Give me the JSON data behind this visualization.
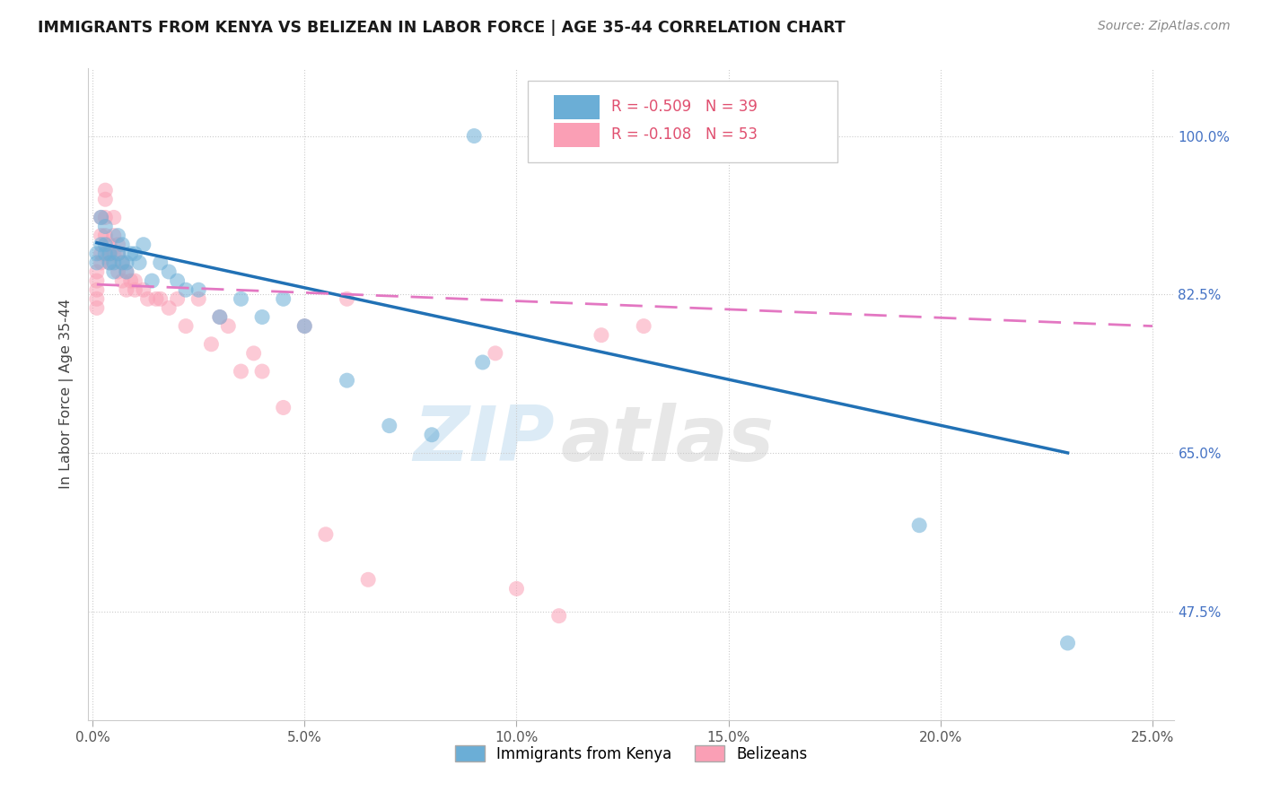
{
  "title": "IMMIGRANTS FROM KENYA VS BELIZEAN IN LABOR FORCE | AGE 35-44 CORRELATION CHART",
  "source": "Source: ZipAtlas.com",
  "ylabel": "In Labor Force | Age 35-44",
  "legend_label_blue": "Immigrants from Kenya",
  "legend_label_pink": "Belizeans",
  "R_blue": -0.509,
  "N_blue": 39,
  "R_pink": -0.108,
  "N_pink": 53,
  "xlim": [
    -0.001,
    0.255
  ],
  "ylim": [
    0.355,
    1.075
  ],
  "xticks": [
    0.0,
    0.05,
    0.1,
    0.15,
    0.2,
    0.25
  ],
  "yticks": [
    0.475,
    0.65,
    0.825,
    1.0
  ],
  "ytick_labels": [
    "47.5%",
    "65.0%",
    "82.5%",
    "100.0%"
  ],
  "xtick_labels": [
    "0.0%",
    "5.0%",
    "10.0%",
    "15.0%",
    "20.0%",
    "25.0%"
  ],
  "blue_color": "#6baed6",
  "pink_color": "#fa9fb5",
  "line_blue": "#2171b5",
  "line_pink": "#e377c2",
  "watermark_zip": "ZIP",
  "watermark_atlas": "atlas",
  "kenya_x": [
    0.001,
    0.001,
    0.002,
    0.002,
    0.003,
    0.003,
    0.003,
    0.004,
    0.004,
    0.005,
    0.005,
    0.006,
    0.006,
    0.007,
    0.007,
    0.008,
    0.008,
    0.009,
    0.01,
    0.011,
    0.012,
    0.014,
    0.016,
    0.018,
    0.02,
    0.022,
    0.025,
    0.03,
    0.035,
    0.04,
    0.045,
    0.05,
    0.06,
    0.07,
    0.08,
    0.09,
    0.092,
    0.195,
    0.23
  ],
  "kenya_y": [
    0.87,
    0.86,
    0.91,
    0.88,
    0.9,
    0.88,
    0.87,
    0.87,
    0.86,
    0.85,
    0.86,
    0.89,
    0.87,
    0.88,
    0.86,
    0.85,
    0.86,
    0.87,
    0.87,
    0.86,
    0.88,
    0.84,
    0.86,
    0.85,
    0.84,
    0.83,
    0.83,
    0.8,
    0.82,
    0.8,
    0.82,
    0.79,
    0.73,
    0.68,
    0.67,
    1.0,
    0.75,
    0.57,
    0.44
  ],
  "belizean_x": [
    0.001,
    0.001,
    0.001,
    0.001,
    0.001,
    0.002,
    0.002,
    0.002,
    0.002,
    0.003,
    0.003,
    0.003,
    0.003,
    0.004,
    0.004,
    0.004,
    0.005,
    0.005,
    0.005,
    0.006,
    0.006,
    0.006,
    0.007,
    0.007,
    0.008,
    0.008,
    0.009,
    0.01,
    0.01,
    0.012,
    0.013,
    0.015,
    0.016,
    0.018,
    0.02,
    0.022,
    0.025,
    0.028,
    0.03,
    0.032,
    0.035,
    0.038,
    0.04,
    0.045,
    0.05,
    0.055,
    0.06,
    0.065,
    0.095,
    0.1,
    0.11,
    0.12,
    0.13
  ],
  "belizean_y": [
    0.85,
    0.84,
    0.83,
    0.82,
    0.81,
    0.91,
    0.89,
    0.87,
    0.86,
    0.94,
    0.93,
    0.91,
    0.89,
    0.88,
    0.87,
    0.86,
    0.91,
    0.89,
    0.87,
    0.88,
    0.87,
    0.85,
    0.86,
    0.84,
    0.85,
    0.83,
    0.84,
    0.84,
    0.83,
    0.83,
    0.82,
    0.82,
    0.82,
    0.81,
    0.82,
    0.79,
    0.82,
    0.77,
    0.8,
    0.79,
    0.74,
    0.76,
    0.74,
    0.7,
    0.79,
    0.56,
    0.82,
    0.51,
    0.76,
    0.5,
    0.47,
    0.78,
    0.79
  ],
  "blue_line_x": [
    0.001,
    0.23
  ],
  "blue_line_y": [
    0.882,
    0.65
  ],
  "pink_line_x": [
    0.001,
    0.25
  ],
  "pink_line_y": [
    0.836,
    0.79
  ]
}
